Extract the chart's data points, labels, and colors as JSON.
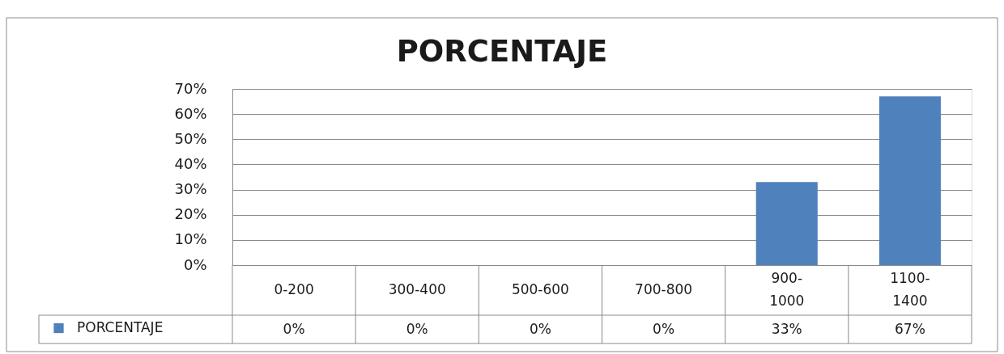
{
  "chart_data": {
    "type": "bar",
    "title": "PORCENTAJE",
    "categories": [
      "0-200",
      "300-400",
      "500-600",
      "700-800",
      "900-1000",
      "1100-1400"
    ],
    "series": [
      {
        "name": "PORCENTAJE",
        "color": "#4f81bd",
        "values": [
          0,
          0,
          0,
          0,
          33,
          67
        ],
        "value_labels": [
          "0%",
          "0%",
          "0%",
          "0%",
          "33%",
          "67%"
        ]
      }
    ],
    "ylim": [
      0,
      70
    ],
    "yticks": [
      {
        "value": 0,
        "label": "0%"
      },
      {
        "value": 10,
        "label": "10%"
      },
      {
        "value": 20,
        "label": "20%"
      },
      {
        "value": 30,
        "label": "30%"
      },
      {
        "value": 40,
        "label": "40%"
      },
      {
        "value": 50,
        "label": "50%"
      },
      {
        "value": 60,
        "label": "60%"
      },
      {
        "value": 70,
        "label": "70%"
      }
    ],
    "grid": "y",
    "legend": "bottom left"
  }
}
